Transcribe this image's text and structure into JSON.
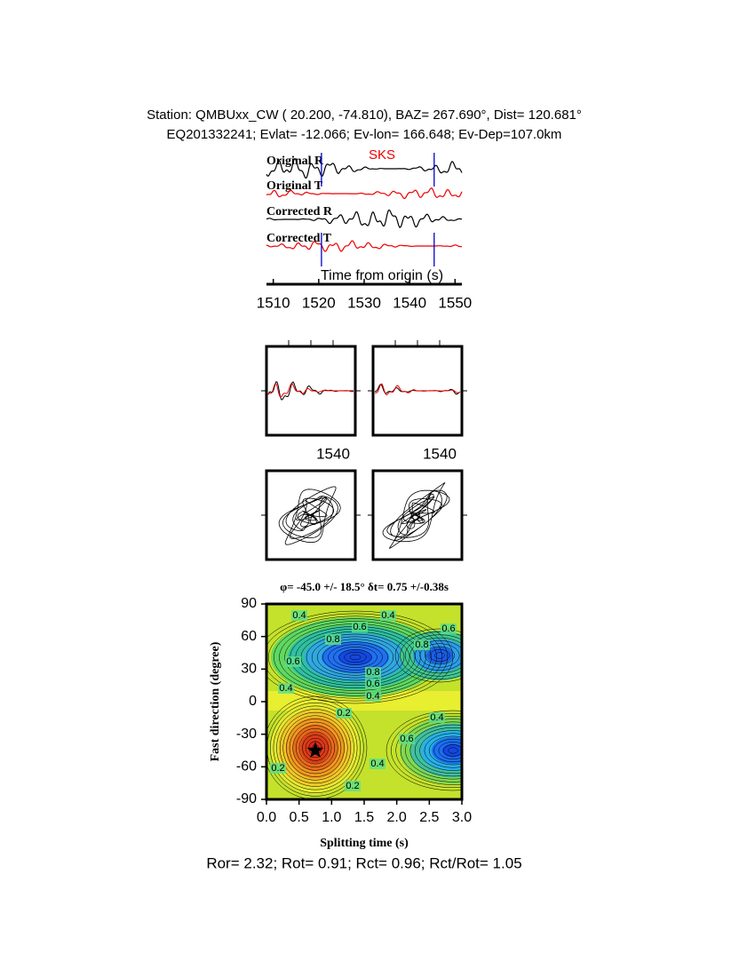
{
  "header": {
    "station": "Station: QMBUxx_CW (  20.200,  -74.810), BAZ=  267.690°, Dist=  120.681°",
    "event": "EQ201332241; Evlat= -12.066; Ev-lon= 166.648; Ev-Dep=107.0km"
  },
  "waveforms": {
    "phase": "SKS",
    "traces": [
      "Original R",
      "Original T",
      "Corrected R",
      "Corrected T"
    ],
    "xlabel": "Time from origin (s)",
    "xlim": [
      1508.5,
      1551.5
    ],
    "xticks": [
      1510,
      1520,
      1530,
      1540,
      1550
    ],
    "window": [
      1520.6,
      1545.4
    ]
  },
  "windows": [
    {
      "xtick": 1540
    },
    {
      "xtick": 1540
    }
  ],
  "grid_search": {
    "title": "φ= -45.0 +/- 18.5° δt= 0.75 +/-0.38s",
    "xlabel": "Splitting time (s)",
    "ylabel": "Fast direction (degree)",
    "xlim": [
      0,
      3
    ],
    "ylim": [
      -90,
      90
    ],
    "xticks": [
      {
        "value": 0,
        "label": "0.0"
      },
      {
        "value": 0.5,
        "label": "0.5"
      },
      {
        "value": 1,
        "label": "1.0"
      },
      {
        "value": 1.5,
        "label": "1.5"
      },
      {
        "value": 2,
        "label": "2.0"
      },
      {
        "value": 2.5,
        "label": "2.5"
      },
      {
        "value": 3,
        "label": "3.0"
      }
    ],
    "yticks": [
      -90,
      -60,
      -30,
      0,
      30,
      60,
      90
    ],
    "best": {
      "x": 0.75,
      "y": -45
    },
    "contour_labels": [
      0.4,
      0.4,
      0.6,
      0.6,
      0.8,
      0.8,
      0.6,
      0.8,
      0.6,
      0.4,
      0.4,
      0.2,
      0.4,
      0.6,
      0.4,
      0.2,
      0.2
    ]
  },
  "footer": "Ror= 2.32; Rot= 0.91; Rct= 0.96; Rct/Rot= 1.05"
}
